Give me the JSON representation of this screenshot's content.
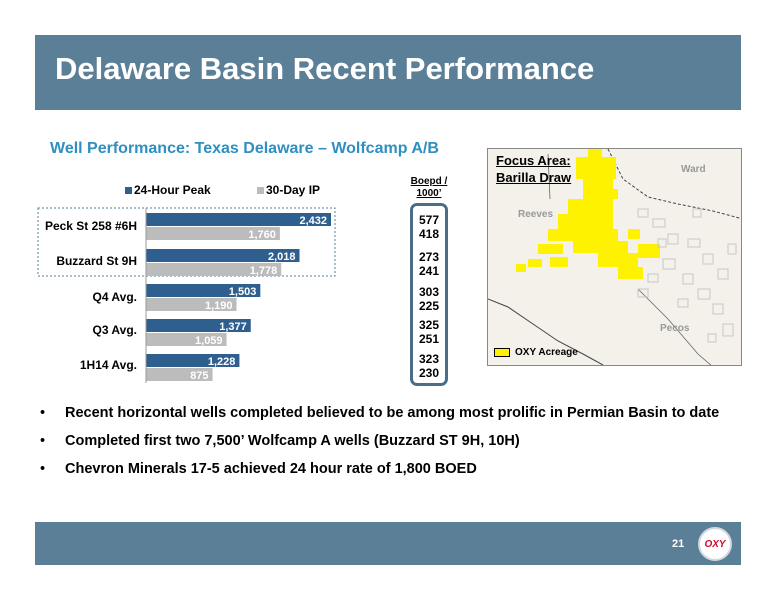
{
  "header": {
    "title": "Delaware Basin Recent Performance"
  },
  "chart_data": {
    "type": "bar",
    "title": "Well Performance: Texas Delaware – Wolfcamp A/B",
    "categories": [
      "Peck St 258 #6H",
      "Buzzard St 9H",
      "Q4 Avg.",
      "Q3 Avg.",
      "1H14 Avg."
    ],
    "series": [
      {
        "name": "24-Hour Peak",
        "color": "#2f5f8f",
        "values": [
          2432,
          2018,
          1503,
          1377,
          1228
        ],
        "labels": [
          "2,432",
          "2,018",
          "1,503",
          "1,377",
          "1,228"
        ]
      },
      {
        "name": "30-Day IP",
        "color": "#bcbcbc",
        "values": [
          1760,
          1778,
          1190,
          1059,
          875
        ],
        "labels": [
          "1,760",
          "1,778",
          "1,190",
          "1,059",
          "875"
        ]
      }
    ],
    "orientation": "horizontal",
    "xlim": [
      0,
      3000
    ]
  },
  "boepd": {
    "heading": "Boepd / 1000’",
    "pairs": [
      [
        "577",
        "418"
      ],
      [
        "273",
        "241"
      ],
      [
        "303",
        "225"
      ],
      [
        "325",
        "251"
      ],
      [
        "323",
        "230"
      ]
    ]
  },
  "map": {
    "title_line1": "Focus Area:",
    "title_line2": "Barilla Draw",
    "labels": {
      "ward": "Ward",
      "reeves": "Reeves",
      "pecos": "Pecos"
    },
    "legend": "OXY Acreage",
    "acreage_color": "#fff200"
  },
  "bullets": [
    "Recent horizontal wells completed believed to be among most prolific in Permian Basin to date",
    "Completed first two 7,500’ Wolfcamp A wells (Buzzard ST 9H, 10H)",
    "Chevron Minerals 17-5 achieved 24 hour rate of 1,800 BOED"
  ],
  "bullet_symbol": "•",
  "footer": {
    "page_number": "21",
    "logo_text": "OXY"
  }
}
